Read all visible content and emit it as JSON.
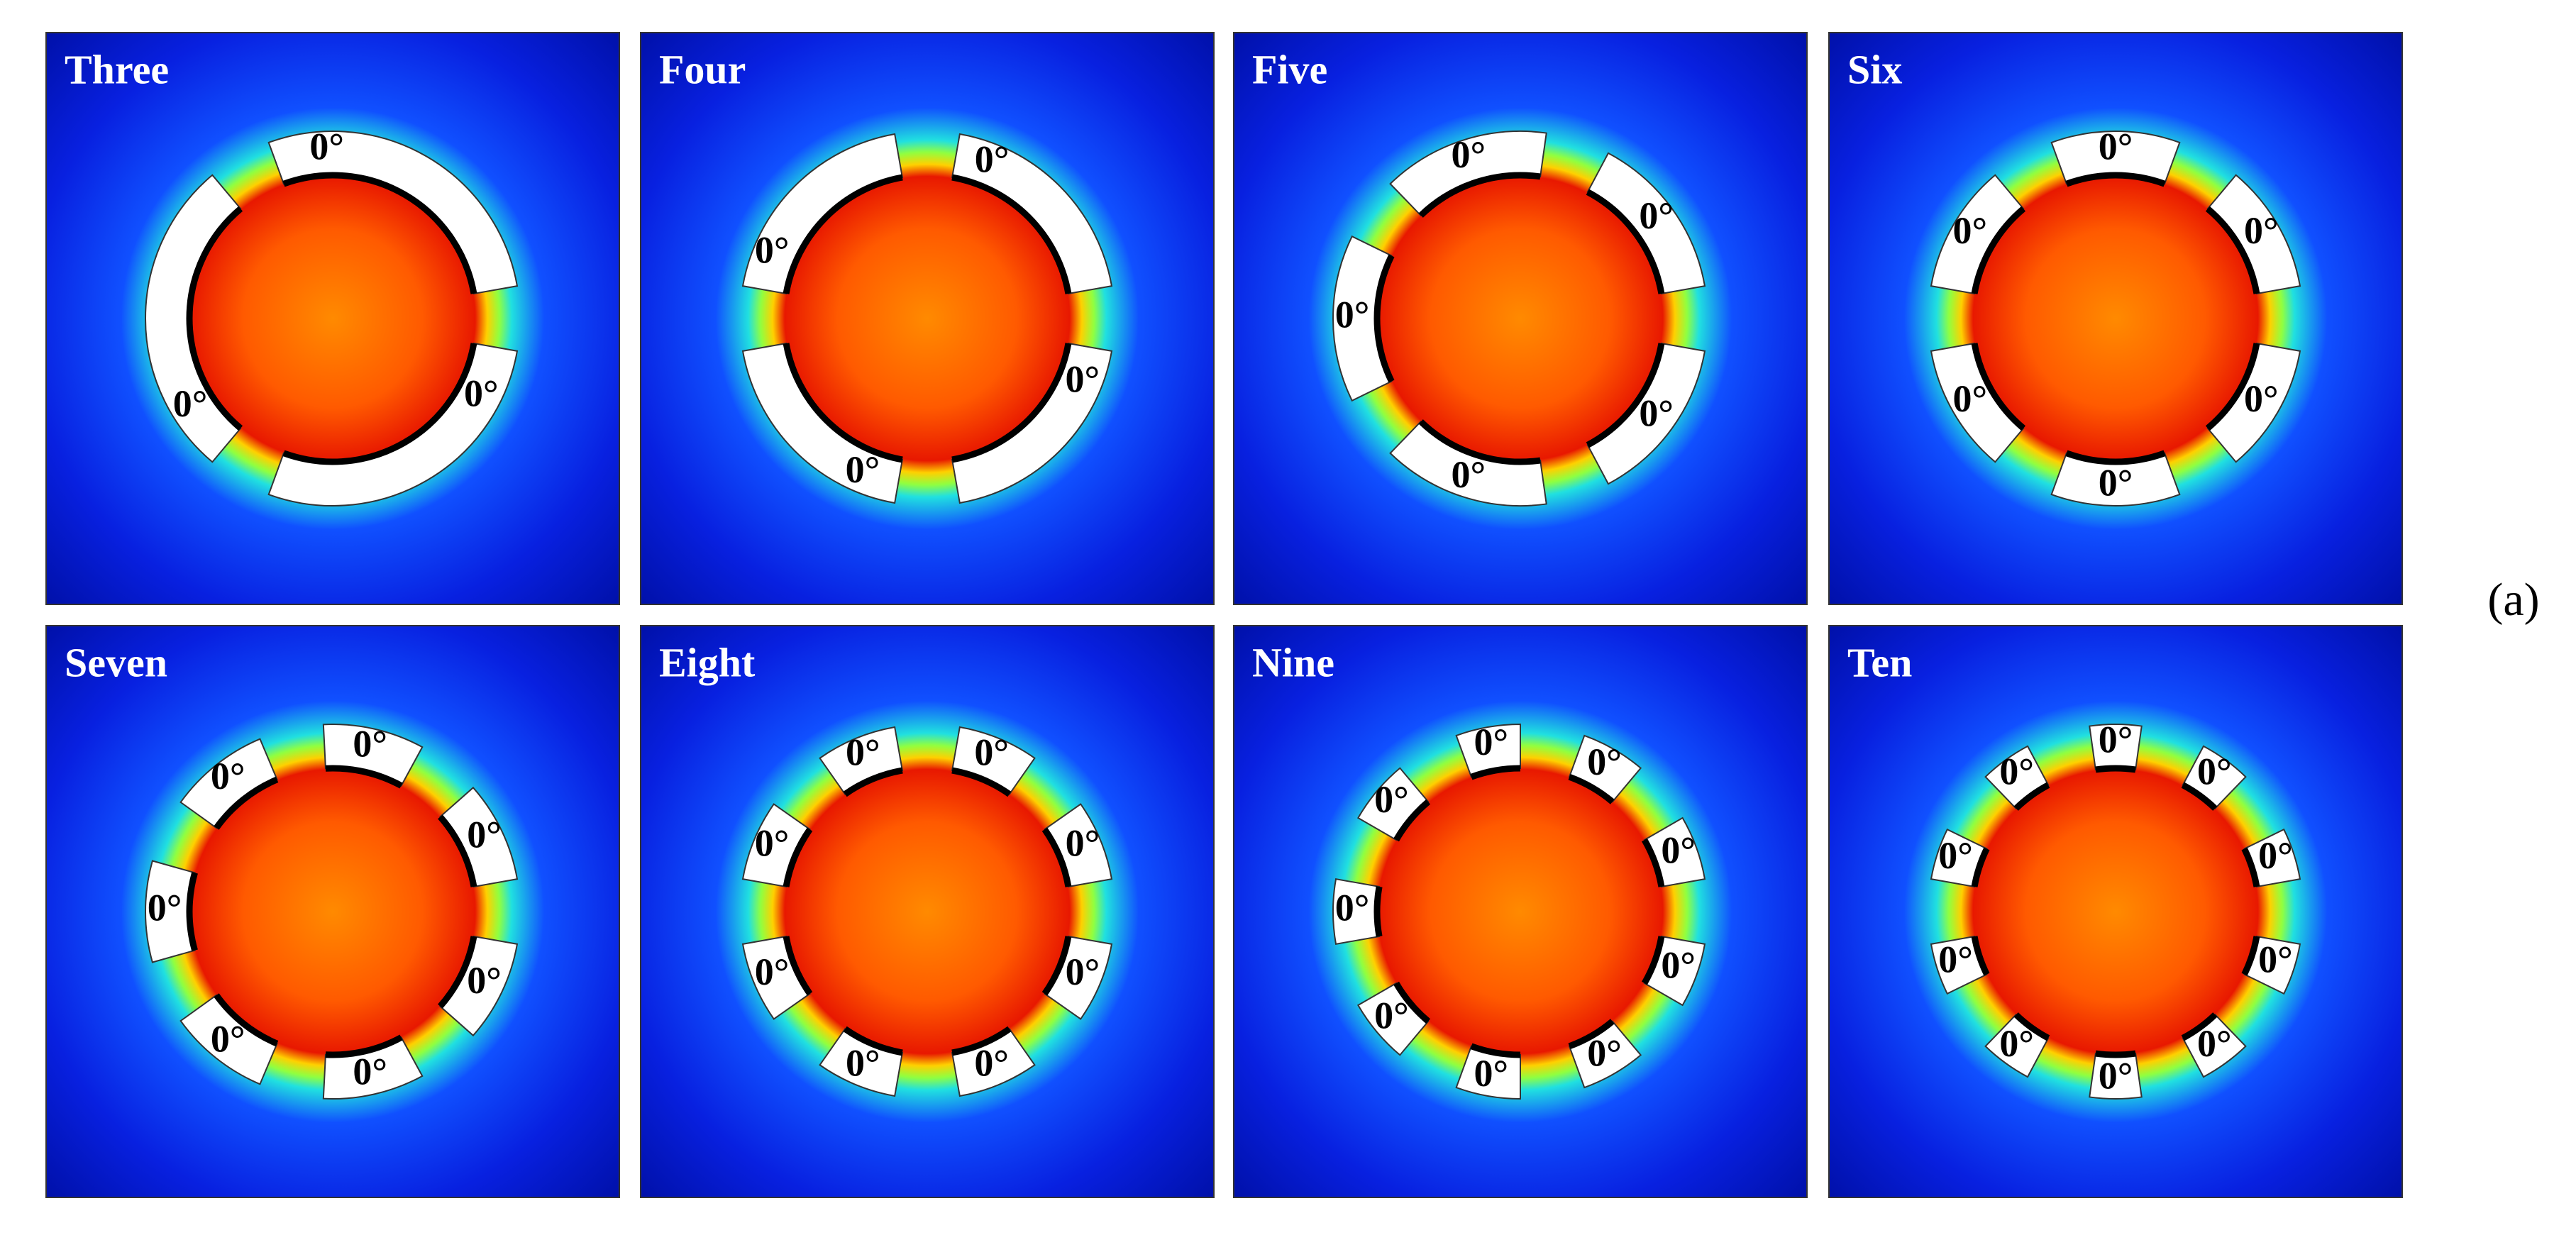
{
  "panels": [
    {
      "label": "Three",
      "segments": [
        "0°",
        "0°",
        "0°"
      ]
    },
    {
      "label": "Four",
      "segments": [
        "0°",
        "0°",
        "0°",
        "0°"
      ]
    },
    {
      "label": "Five",
      "segments": [
        "0°",
        "0°",
        "0°",
        "0°",
        "0°"
      ]
    },
    {
      "label": "Six",
      "segments": [
        "0°",
        "0°",
        "0°",
        "0°",
        "0°",
        "0°"
      ]
    },
    {
      "label": "Seven",
      "segments": [
        "0°",
        "0°",
        "0°",
        "0°",
        "0°",
        "0°",
        "0°"
      ]
    },
    {
      "label": "Eight",
      "segments": [
        "0°",
        "0°",
        "0°",
        "0°",
        "0°",
        "0°",
        "0°",
        "0°"
      ]
    },
    {
      "label": "Nine",
      "segments": [
        "0°",
        "0°",
        "0°",
        "0°",
        "0°",
        "0°",
        "0°",
        "0°",
        "0°"
      ]
    },
    {
      "label": "Ten",
      "segments": [
        "0°",
        "0°",
        "0°",
        "0°",
        "0°",
        "0°",
        "0°",
        "0°",
        "0°",
        "0°"
      ]
    }
  ],
  "figure_label": "(a)"
}
